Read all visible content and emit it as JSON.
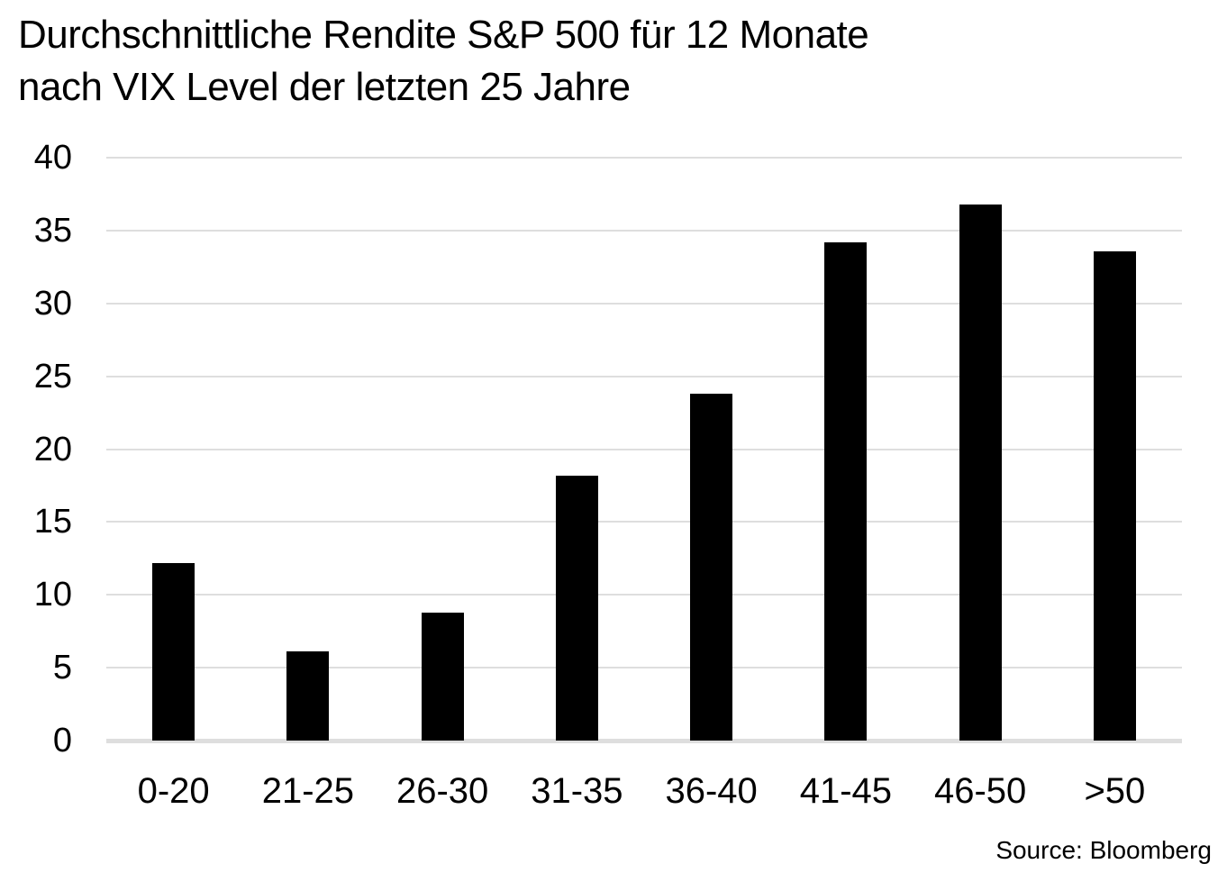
{
  "title": {
    "line1": "Durchschnittliche Rendite S&P 500 für 12 Monate",
    "line2": "nach VIX Level der letzten 25 Jahre"
  },
  "source": {
    "label": "Source: Bloomberg"
  },
  "colors": {
    "bar": "#000000",
    "gridline": "#dedede",
    "text": "#000000",
    "background": "#ffffff"
  },
  "chart_data": {
    "type": "bar",
    "title": "Durchschnittliche Rendite S&P 500 für 12 Monate nach VIX Level der letzten 25 Jahre",
    "categories": [
      "0-20",
      "21-25",
      "26-30",
      "31-35",
      "36-40",
      "41-45",
      "46-50",
      ">50"
    ],
    "values": [
      12.2,
      6.1,
      8.8,
      18.2,
      23.8,
      34.2,
      36.8,
      33.6
    ],
    "xlabel": "",
    "ylabel": "",
    "ylim": [
      0,
      40
    ],
    "yticks": [
      0,
      5,
      10,
      15,
      20,
      25,
      30,
      35,
      40
    ],
    "grid": "horizontal",
    "legend": "none",
    "bar_color": "#000000",
    "annotation": "Source: Bloomberg"
  }
}
